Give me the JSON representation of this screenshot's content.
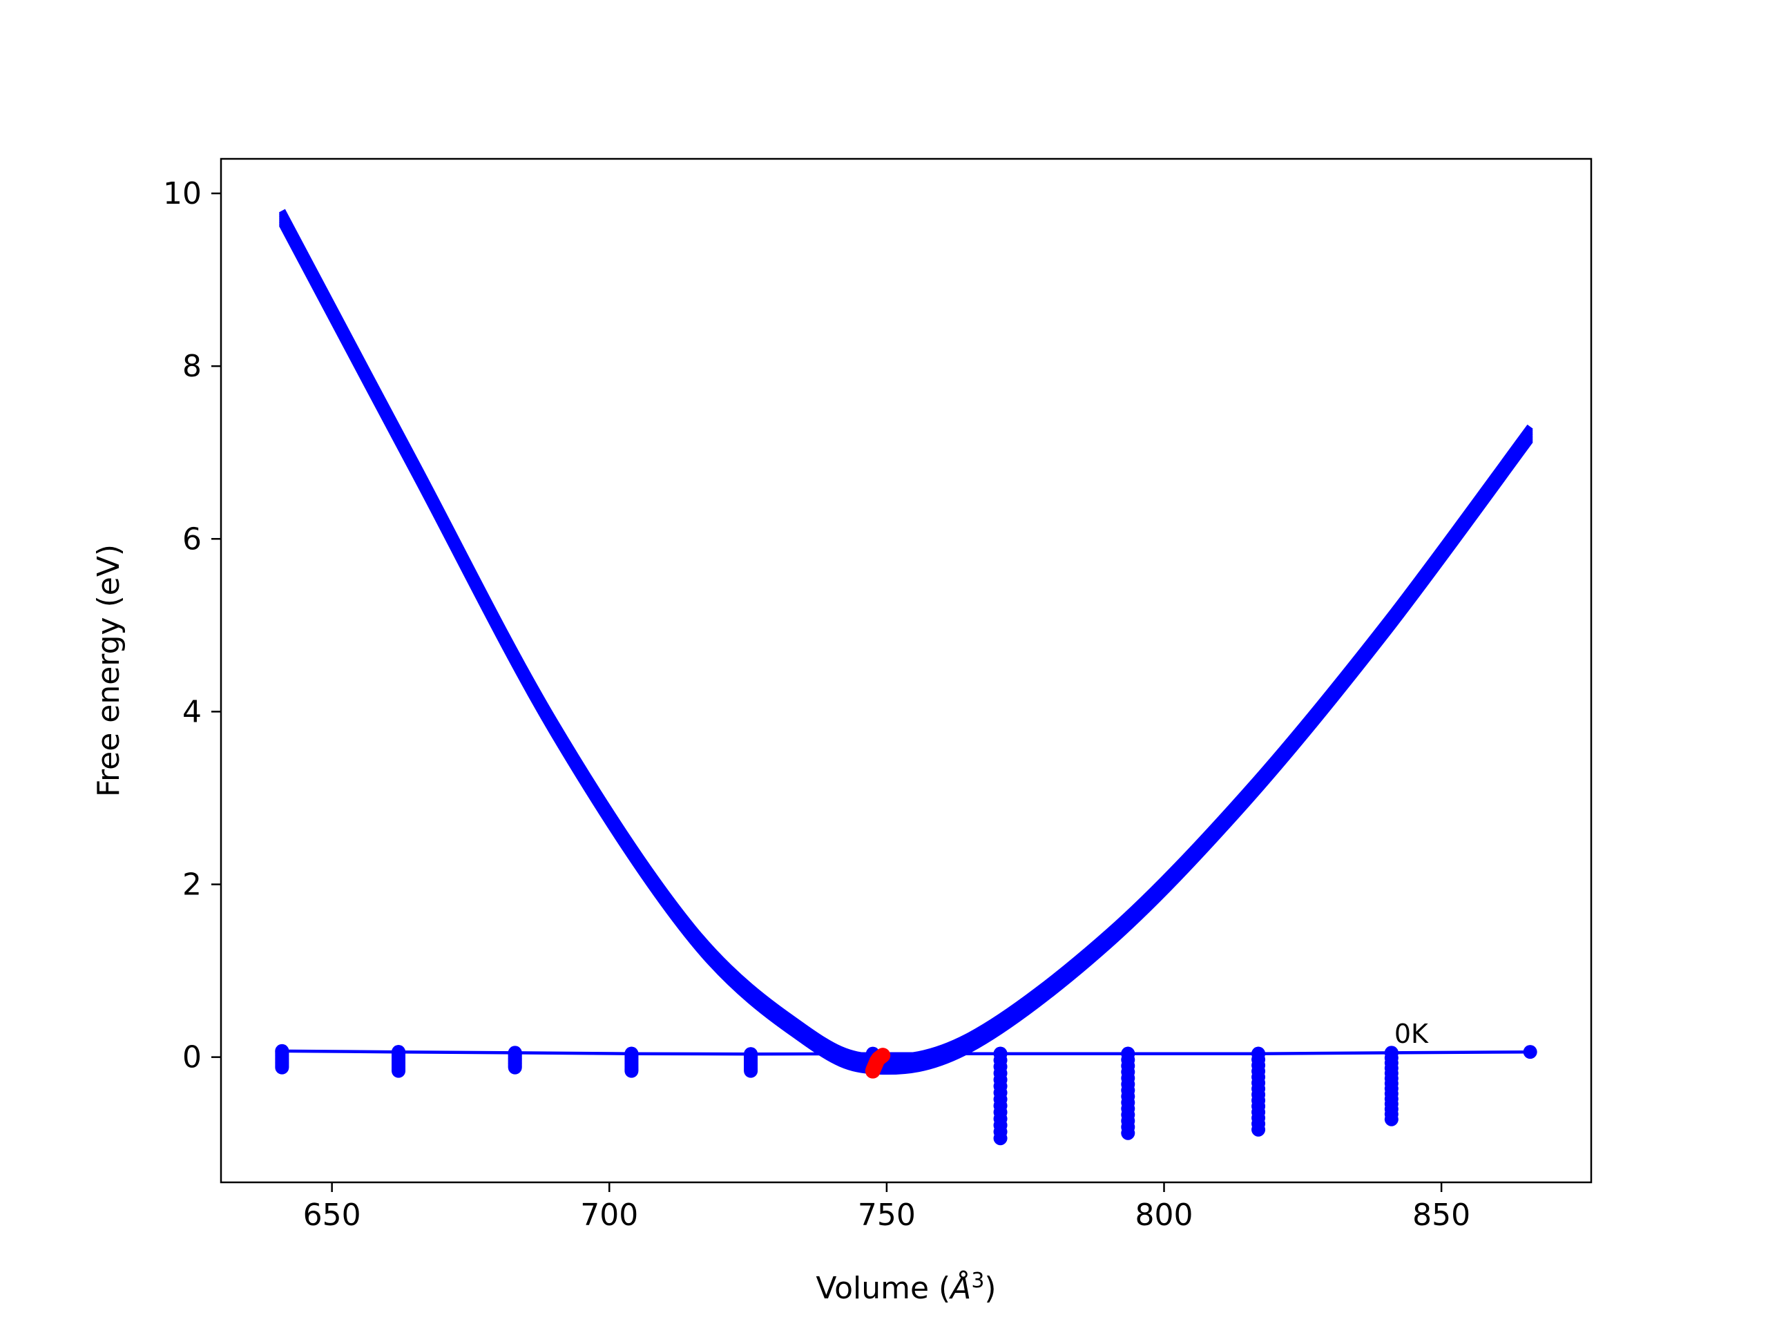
{
  "chart_data": {
    "type": "line",
    "title": "",
    "xlabel": "Volume",
    "xlabel_unit": "Å",
    "xlabel_unit_exp": "3",
    "ylabel": "Free energy (eV)",
    "xlim": [
      630,
      877
    ],
    "ylim": [
      -1.45,
      10.4
    ],
    "x_ticks": [
      650,
      700,
      750,
      800,
      850
    ],
    "y_ticks": [
      0,
      2,
      4,
      6,
      8,
      10
    ],
    "grid": false,
    "legend": "none",
    "colors": {
      "series": "#0000ff",
      "minima": "#ff0000",
      "axis": "#000000"
    },
    "annotations": [
      {
        "text": "0K",
        "x": 841,
        "y": 0.07
      }
    ],
    "curve_fits": {
      "description": "Family of fitted free-energy curves (one per temperature), stacked as a thick band",
      "count": 14,
      "x_start": 641,
      "x_end": 866,
      "points": [
        [
          641,
          9.8
        ],
        [
          665,
          6.9
        ],
        [
          690,
          3.9
        ],
        [
          715,
          1.5
        ],
        [
          735,
          0.35
        ],
        [
          748,
          0.0
        ],
        [
          765,
          0.25
        ],
        [
          790,
          1.45
        ],
        [
          815,
          3.1
        ],
        [
          840,
          5.05
        ],
        [
          866,
          7.3
        ]
      ],
      "min_offset_range": [
        0,
        -0.16
      ]
    },
    "series": [
      {
        "name": "0K",
        "type": "line-markers",
        "x": [
          641,
          662,
          683,
          704,
          725.5,
          747.5,
          770.5,
          793.5,
          817,
          841,
          866
        ],
        "y": [
          0.07,
          0.06,
          0.05,
          0.04,
          0.035,
          0.04,
          0.04,
          0.04,
          0.04,
          0.05,
          0.06
        ]
      },
      {
        "name": "energy points",
        "type": "scatter-columns",
        "x": [
          641,
          662,
          683,
          704,
          725.5,
          770.5,
          793.5,
          817,
          841
        ],
        "y_min": [
          -0.12,
          -0.16,
          -0.12,
          -0.16,
          -0.16,
          -0.94,
          -0.88,
          -0.84,
          -0.72
        ],
        "y_max": [
          0.07,
          0.06,
          0.05,
          0.04,
          0.035,
          0.04,
          0.04,
          0.04,
          0.05
        ],
        "points_per_column": 14
      },
      {
        "name": "minima",
        "type": "scatter",
        "color": "#ff0000",
        "x": [
          747.5,
          747.6,
          747.7,
          747.8,
          747.9,
          748.0,
          748.1,
          748.2,
          748.3,
          748.5,
          748.7,
          748.9,
          749.1,
          749.3
        ],
        "y": [
          -0.16,
          -0.14,
          -0.13,
          -0.11,
          -0.1,
          -0.08,
          -0.07,
          -0.05,
          -0.04,
          -0.02,
          -0.01,
          0.0,
          0.01,
          0.02
        ]
      }
    ]
  }
}
